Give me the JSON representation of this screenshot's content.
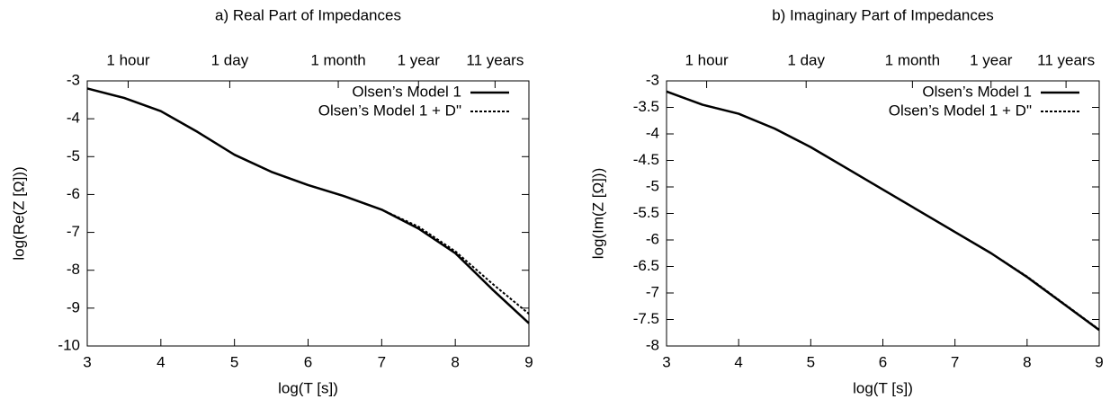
{
  "chart_data": [
    {
      "type": "line",
      "title": "a) Real Part of Impedances",
      "xlabel": "log(T [s])",
      "ylabel": "log(Re(Z [Ω]))",
      "x": [
        3,
        3.5,
        4,
        4.5,
        5,
        5.5,
        6,
        6.5,
        7,
        7.5,
        8,
        8.5,
        9
      ],
      "series": [
        {
          "name": "Olsen’s Model 1",
          "color": "#000000",
          "dash": "solid",
          "values": [
            -3.2,
            -3.45,
            -3.8,
            -4.35,
            -4.95,
            -5.4,
            -5.75,
            -6.05,
            -6.4,
            -6.9,
            -7.55,
            -8.5,
            -9.4
          ]
        },
        {
          "name": "Olsen’s Model 1 + D\"",
          "color": "#000000",
          "dash": "dotted",
          "values": [
            -3.2,
            -3.45,
            -3.8,
            -4.35,
            -4.95,
            -5.4,
            -5.75,
            -6.05,
            -6.4,
            -6.85,
            -7.5,
            -8.35,
            -9.15
          ]
        }
      ],
      "xlim": [
        3,
        9
      ],
      "xticks": [
        3,
        4,
        5,
        6,
        7,
        8,
        9
      ],
      "x2ticks": [
        {
          "value": 3.556,
          "label": "1 hour"
        },
        {
          "value": 4.936,
          "label": "1 day"
        },
        {
          "value": 6.41,
          "label": "1 month"
        },
        {
          "value": 7.5,
          "label": "1 year"
        },
        {
          "value": 8.54,
          "label": "11 years"
        }
      ],
      "ylim": [
        -10,
        -3
      ],
      "yticks": [
        -10,
        -9,
        -8,
        -7,
        -6,
        -5,
        -4,
        -3
      ],
      "legend": "top-right"
    },
    {
      "type": "line",
      "title": "b) Imaginary Part of Impedances",
      "xlabel": "log(T [s])",
      "ylabel": "log(Im(Z [Ω]))",
      "x": [
        3,
        3.5,
        4,
        4.5,
        5,
        5.5,
        6,
        6.5,
        7,
        7.5,
        8,
        8.5,
        9
      ],
      "series": [
        {
          "name": "Olsen’s Model 1",
          "color": "#000000",
          "dash": "solid",
          "values": [
            -3.2,
            -3.45,
            -3.62,
            -3.9,
            -4.25,
            -4.65,
            -5.05,
            -5.45,
            -5.85,
            -6.25,
            -6.7,
            -7.2,
            -7.7
          ]
        },
        {
          "name": "Olsen’s Model 1 + D\"",
          "color": "#000000",
          "dash": "dotted",
          "values": [
            -3.2,
            -3.45,
            -3.62,
            -3.9,
            -4.25,
            -4.65,
            -5.05,
            -5.45,
            -5.85,
            -6.25,
            -6.69,
            -7.19,
            -7.69
          ]
        }
      ],
      "xlim": [
        3,
        9
      ],
      "xticks": [
        3,
        4,
        5,
        6,
        7,
        8,
        9
      ],
      "x2ticks": [
        {
          "value": 3.556,
          "label": "1 hour"
        },
        {
          "value": 4.936,
          "label": "1 day"
        },
        {
          "value": 6.41,
          "label": "1 month"
        },
        {
          "value": 7.5,
          "label": "1 year"
        },
        {
          "value": 8.54,
          "label": "11 years"
        }
      ],
      "ylim": [
        -8,
        -3
      ],
      "yticks": [
        -8,
        -7.5,
        -7,
        -6.5,
        -6,
        -5.5,
        -5,
        -4.5,
        -4,
        -3.5,
        -3
      ],
      "legend": "top-right"
    }
  ]
}
